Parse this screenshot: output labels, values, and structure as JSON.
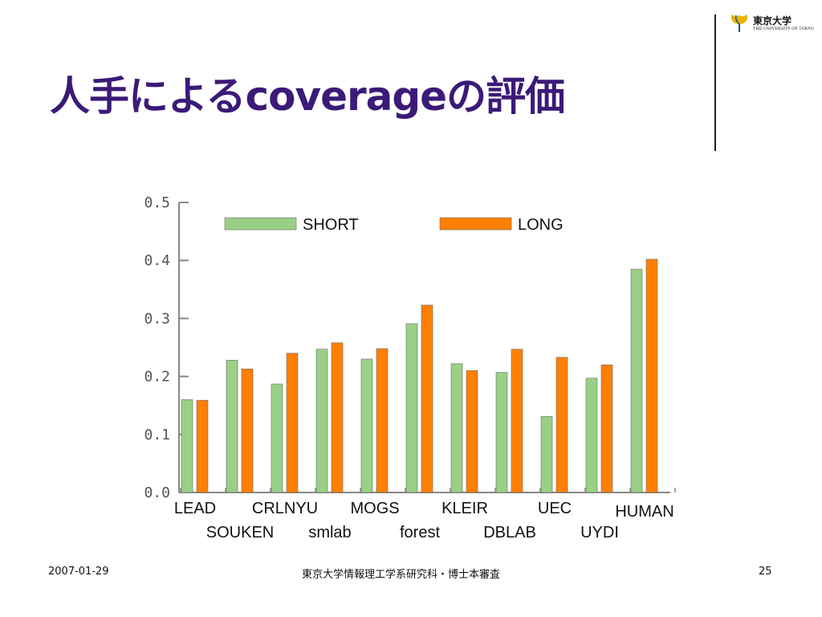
{
  "slide": {
    "title": "人手によるcoverageの評価",
    "date": "2007-01-29",
    "center": "東京大学情報理工学系研究科・博士本審査",
    "page": "25"
  },
  "logo": {
    "name": "東京大学",
    "subtitle": "THE UNIVERSITY OF TOKYO",
    "colors": {
      "leaf": "#e8b400",
      "leaf_dark": "#1f4e8c"
    }
  },
  "chart_data": {
    "type": "bar",
    "title": "",
    "xlabel": "",
    "ylabel": "",
    "ylim": [
      0,
      0.5
    ],
    "yticks": [
      "0.0",
      "0.1",
      "0.2",
      "0.3",
      "0.4",
      "0.5"
    ],
    "grid": false,
    "legend_position": "top",
    "categories": [
      "LEAD",
      "SOUKEN",
      "CRLNYU",
      "smlab",
      "MOGS",
      "forest",
      "KLEIR",
      "DBLAB",
      "UEC",
      "UYDI",
      "HUMAN"
    ],
    "series": [
      {
        "name": "SHORT",
        "color": "#99d085",
        "values": [
          0.16,
          0.228,
          0.187,
          0.247,
          0.23,
          0.291,
          0.222,
          0.207,
          0.131,
          0.197,
          0.385
        ]
      },
      {
        "name": "LONG",
        "color": "#ff7f00",
        "values": [
          0.159,
          0.213,
          0.24,
          0.258,
          0.248,
          0.323,
          0.21,
          0.247,
          0.233,
          0.22,
          0.402
        ]
      }
    ]
  }
}
